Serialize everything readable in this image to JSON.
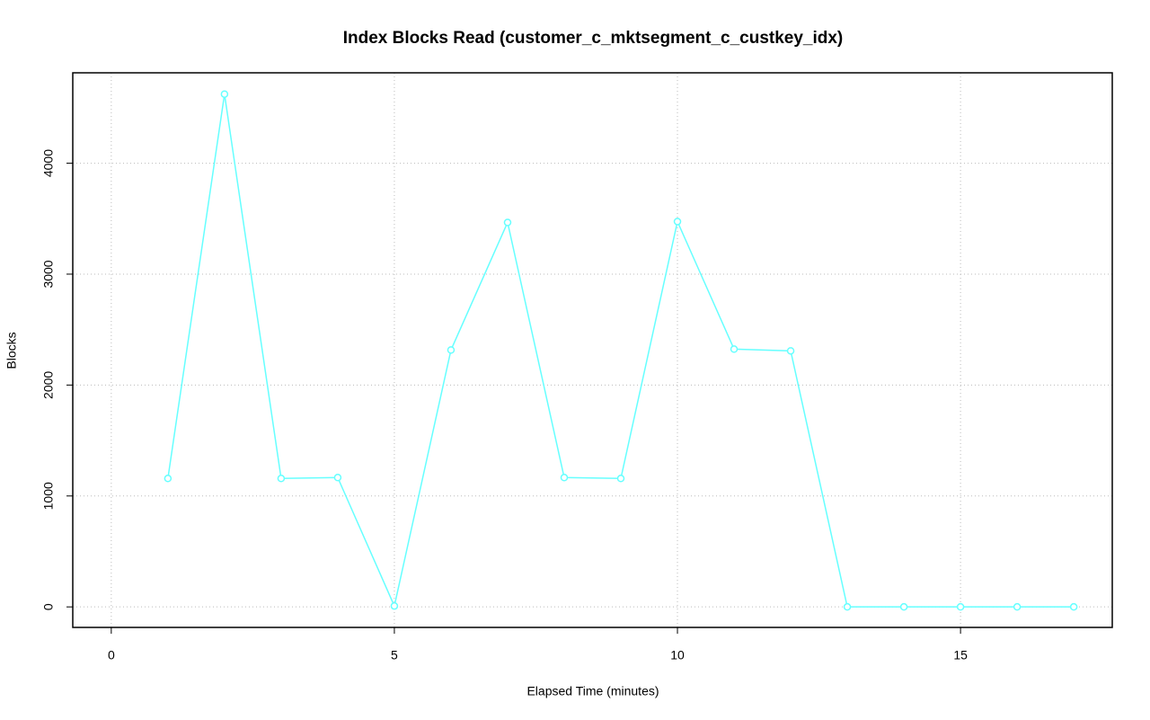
{
  "chart_data": {
    "type": "line",
    "title": "Index Blocks Read (customer_c_mktsegment_c_custkey_idx)",
    "x_label": "Elapsed Time (minutes)",
    "y_label": "Blocks",
    "x": [
      1,
      2,
      3,
      4,
      5,
      6,
      7,
      8,
      9,
      10,
      11,
      12,
      13,
      14,
      15,
      16,
      17
    ],
    "values": [
      1158,
      4623,
      1158,
      1166,
      8,
      2316,
      3466,
      1166,
      1158,
      3474,
      2324,
      2308,
      0,
      0,
      0,
      0,
      0
    ],
    "color": "#66ffff",
    "xlim": [
      -0.68,
      17.68
    ],
    "xticks": [
      0,
      5,
      10,
      15
    ],
    "ylim": [
      -185,
      4815
    ],
    "yticks": [
      0,
      1000,
      2000,
      3000,
      4000
    ],
    "grid": true
  }
}
